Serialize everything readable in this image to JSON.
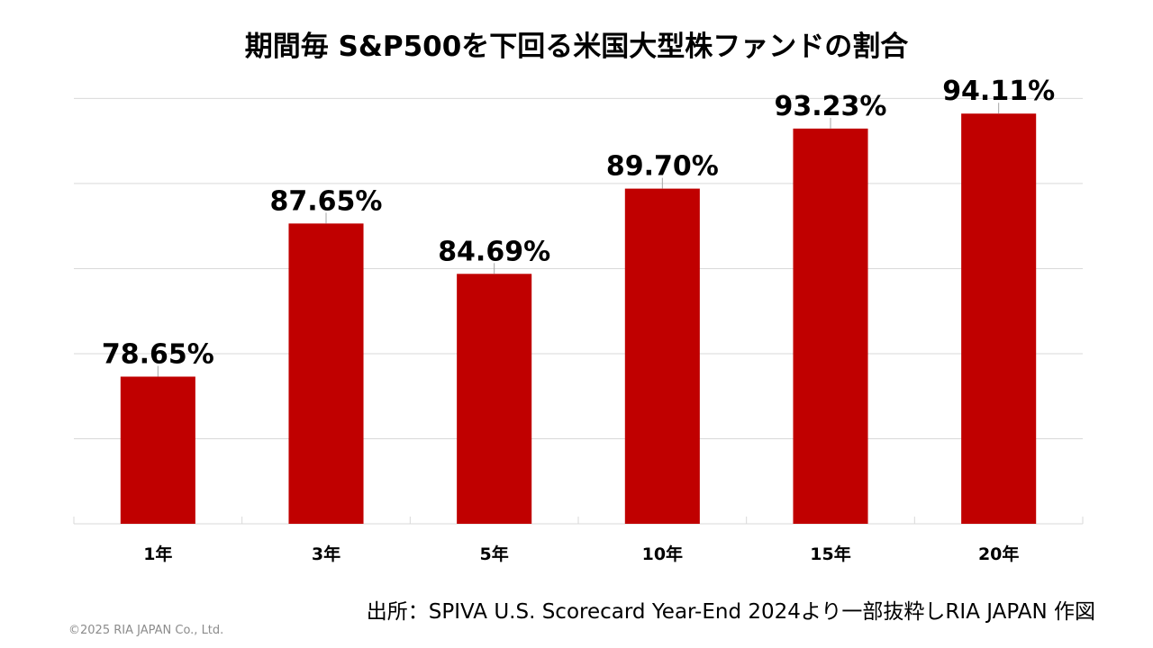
{
  "chart_data": {
    "type": "bar",
    "title": "期間毎 S&P500を下回る米国大型株ファンドの割合",
    "categories": [
      "1年",
      "3年",
      "5年",
      "10年",
      "15年",
      "20年"
    ],
    "values": [
      78.65,
      87.65,
      84.69,
      89.7,
      93.23,
      94.11
    ],
    "data_labels": [
      "78.65%",
      "87.65%",
      "84.69%",
      "89.70%",
      "93.23%",
      "94.11%"
    ],
    "xlabel": "",
    "ylabel": "",
    "ylim": [
      70,
      95
    ],
    "y_grid_step": 5,
    "grid": true,
    "y_tick_labels_visible": false,
    "legend": "none",
    "bar_color": "#C00000"
  },
  "source_note": "出所：SPIVA U.S. Scorecard Year-End 2024より一部抜粋しRIA JAPAN 作図",
  "copyright": "©2025 RIA JAPAN Co., Ltd."
}
